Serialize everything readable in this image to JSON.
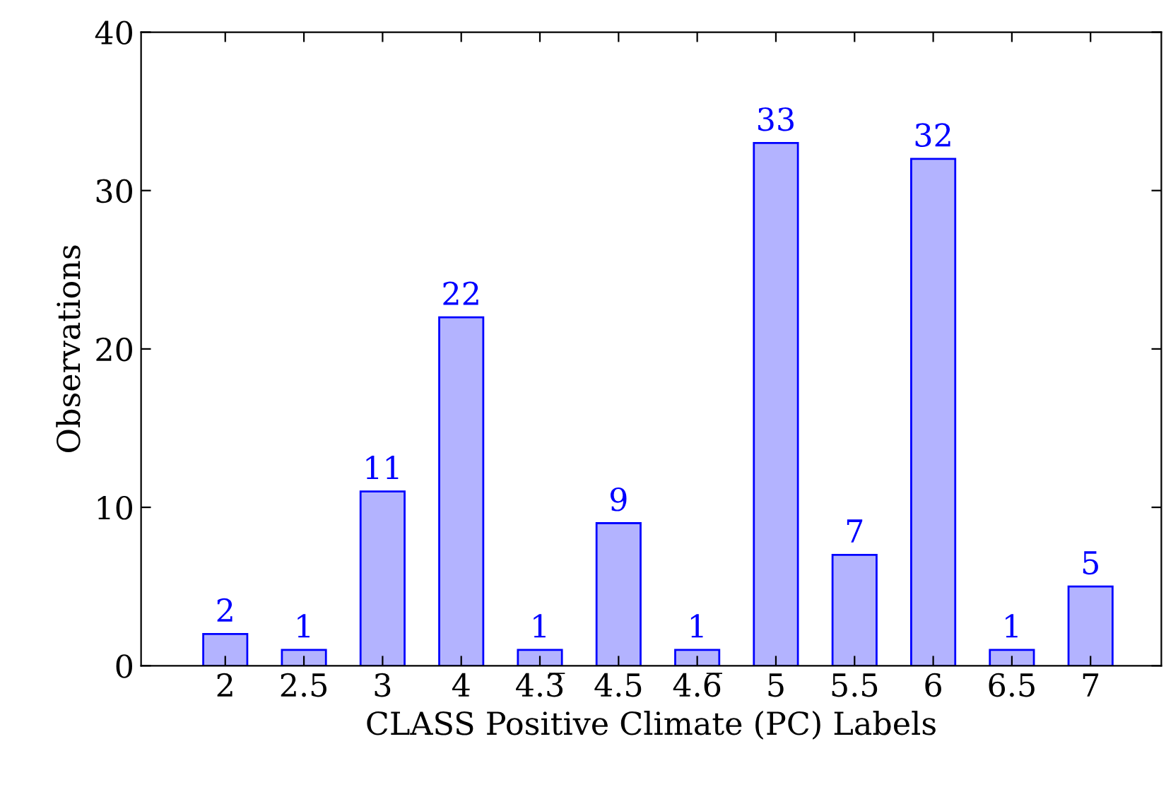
{
  "chart_data": {
    "type": "bar",
    "xlabel": "CLASS Positive Climate (PC) Labels",
    "ylabel": "Observations",
    "categories": [
      "2",
      "2.5",
      "3",
      "4",
      "4.3̅",
      "4.5",
      "4.6̅",
      "5",
      "5.5",
      "6",
      "6.5",
      "7"
    ],
    "values": [
      2,
      1,
      11,
      22,
      1,
      9,
      1,
      33,
      7,
      32,
      1,
      5
    ],
    "color": "#b3b3ff",
    "ylim": [
      0,
      40
    ],
    "yticks": [
      0,
      10,
      20,
      30,
      40
    ],
    "data_labels": true,
    "grid": false,
    "legend": false
  }
}
